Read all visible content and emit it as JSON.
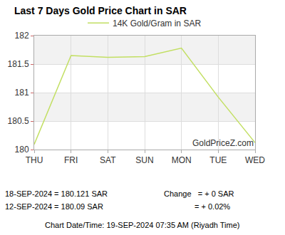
{
  "chart_data": {
    "type": "line",
    "title": "Last 7 Days Gold Price Chart in SAR",
    "categories": [
      "THU",
      "FRI",
      "SAT",
      "SUN",
      "MON",
      "TUE",
      "WED"
    ],
    "series": [
      {
        "name": "14K Gold/Gram in SAR",
        "color": "#c2df62",
        "values": [
          180.09,
          181.65,
          181.62,
          181.63,
          181.78,
          180.92,
          180.121
        ]
      }
    ],
    "ylim": [
      180,
      182
    ],
    "yticks": [
      180,
      180.5,
      181,
      181.5,
      182
    ],
    "grid": true,
    "legend": "top",
    "annotations": [
      "GoldPriceZ.com",
      "18-SEP-2024 = 180.121 SAR",
      "12-SEP-2024 = 180.09 SAR",
      "Change   = + 0 SAR",
      "= + 0.02%",
      "Chart Date/Time: 19-SEP-2024 07:35 AM (Riyadh Time)"
    ]
  }
}
